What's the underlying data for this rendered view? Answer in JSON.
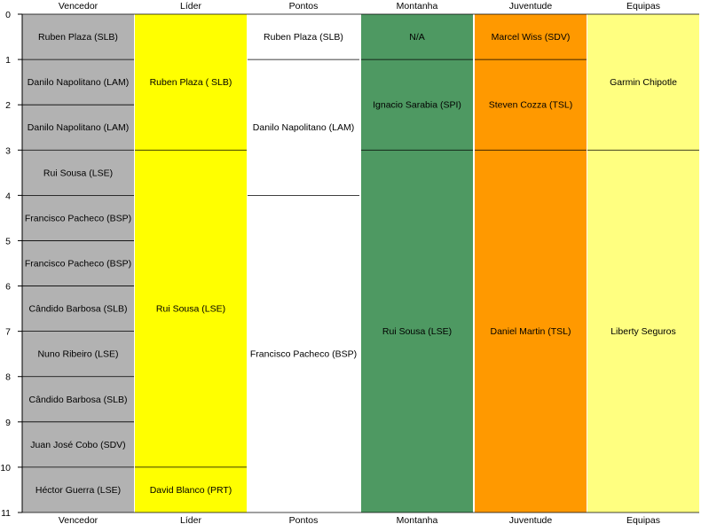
{
  "chart_data": {
    "type": "timeline-table",
    "y_axis": {
      "min": 0,
      "max": 11,
      "ticks": [
        0,
        1,
        2,
        3,
        4,
        5,
        6,
        7,
        8,
        9,
        10,
        11
      ]
    },
    "columns": [
      {
        "name": "Vencedor",
        "color": "#b2b2b2",
        "segments": [
          {
            "start": 0,
            "end": 1,
            "label": "Ruben Plaza (SLB)"
          },
          {
            "start": 1,
            "end": 2,
            "label": "Danilo Napolitano (LAM)"
          },
          {
            "start": 2,
            "end": 3,
            "label": "Danilo Napolitano (LAM)"
          },
          {
            "start": 3,
            "end": 4,
            "label": "Rui Sousa (LSE)"
          },
          {
            "start": 4,
            "end": 5,
            "label": "Francisco Pacheco (BSP)"
          },
          {
            "start": 5,
            "end": 6,
            "label": "Francisco Pacheco (BSP)"
          },
          {
            "start": 6,
            "end": 7,
            "label": "Cândido Barbosa (SLB)"
          },
          {
            "start": 7,
            "end": 8,
            "label": "Nuno Ribeiro (LSE)"
          },
          {
            "start": 8,
            "end": 9,
            "label": "Cândido Barbosa (SLB)"
          },
          {
            "start": 9,
            "end": 10,
            "label": "Juan José Cobo (SDV)"
          },
          {
            "start": 10,
            "end": 11,
            "label": "Héctor Guerra (LSE)"
          }
        ]
      },
      {
        "name": "Líder",
        "color": "#ffff00",
        "segments": [
          {
            "start": 0,
            "end": 3,
            "label": "Ruben Plaza ( SLB)"
          },
          {
            "start": 3,
            "end": 10,
            "label": "Rui Sousa (LSE)"
          },
          {
            "start": 10,
            "end": 11,
            "label": "David Blanco (PRT)"
          }
        ]
      },
      {
        "name": "Pontos",
        "color": "#ffffff",
        "segments": [
          {
            "start": 0,
            "end": 1,
            "label": "Ruben Plaza (SLB)"
          },
          {
            "start": 1,
            "end": 4,
            "label": "Danilo Napolitano (LAM)"
          },
          {
            "start": 4,
            "end": 11,
            "label": "Francisco Pacheco (BSP)"
          }
        ]
      },
      {
        "name": "Montanha",
        "color": "#4e9962",
        "segments": [
          {
            "start": 0,
            "end": 1,
            "label": "N/A"
          },
          {
            "start": 1,
            "end": 3,
            "label": "Ignacio Sarabia (SPI)"
          },
          {
            "start": 3,
            "end": 11,
            "label": "Rui Sousa (LSE)"
          }
        ]
      },
      {
        "name": "Juventude",
        "color": "#ff9900",
        "segments": [
          {
            "start": 0,
            "end": 1,
            "label": "Marcel Wiss (SDV)"
          },
          {
            "start": 1,
            "end": 3,
            "label": "Steven Cozza (TSL)"
          },
          {
            "start": 3,
            "end": 11,
            "label": "Daniel Martin (TSL)"
          }
        ]
      },
      {
        "name": "Equipas",
        "color": "#ffff80",
        "segments": [
          {
            "start": 0,
            "end": 3,
            "label": "Garmin Chipotle"
          },
          {
            "start": 3,
            "end": 11,
            "label": "Liberty Seguros"
          }
        ]
      }
    ]
  }
}
